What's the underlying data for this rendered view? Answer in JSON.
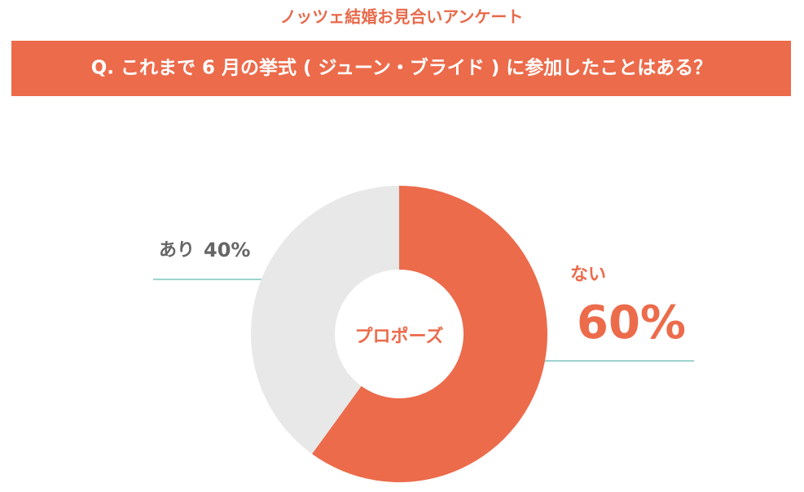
{
  "chart_data": {
    "type": "donut",
    "subtitle": "ノッツェ結婚お見合いアンケート",
    "title": "Q. これまで 6 月の挙式 ( ジューン・ブライド ) に参加したことはある？",
    "center_label": "プロポーズ",
    "categories": [
      "ない",
      "あり"
    ],
    "values": [
      60,
      40
    ],
    "value_labels": [
      "60%",
      "40%"
    ],
    "colors": [
      "#ec6b4b",
      "#e8e8e8"
    ],
    "label_colors": [
      "#ec6b4b",
      "#666666"
    ]
  }
}
